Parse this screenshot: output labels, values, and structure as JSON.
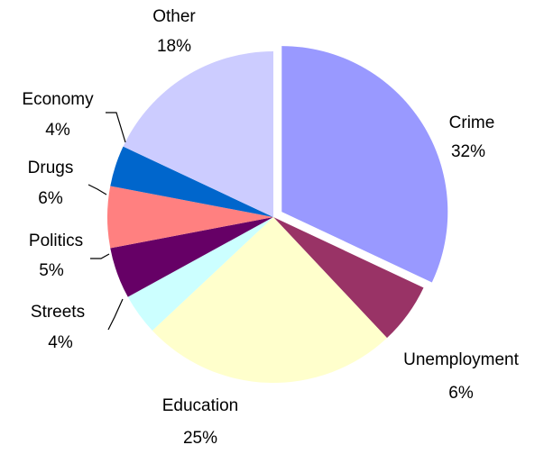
{
  "chart_data": {
    "type": "pie",
    "title": "",
    "slices": [
      {
        "label": "Crime",
        "value": 32,
        "display": "32%",
        "color": "#9999ff",
        "exploded": true
      },
      {
        "label": "Unemployment",
        "value": 6,
        "display": "6%",
        "color": "#993366"
      },
      {
        "label": "Education",
        "value": 25,
        "display": "25%",
        "color": "#ffffcc"
      },
      {
        "label": "Streets",
        "value": 4,
        "display": "4%",
        "color": "#ccffff"
      },
      {
        "label": "Politics",
        "value": 5,
        "display": "5%",
        "color": "#660066"
      },
      {
        "label": "Drugs",
        "value": 6,
        "display": "6%",
        "color": "#ff8080"
      },
      {
        "label": "Economy",
        "value": 4,
        "display": "4%",
        "color": "#0066cc"
      },
      {
        "label": "Other",
        "value": 18,
        "display": "18%",
        "color": "#ccccff"
      }
    ],
    "start": "12 o'clock",
    "direction": "clockwise",
    "legend": "none",
    "data_labels": "category name and percentage"
  }
}
